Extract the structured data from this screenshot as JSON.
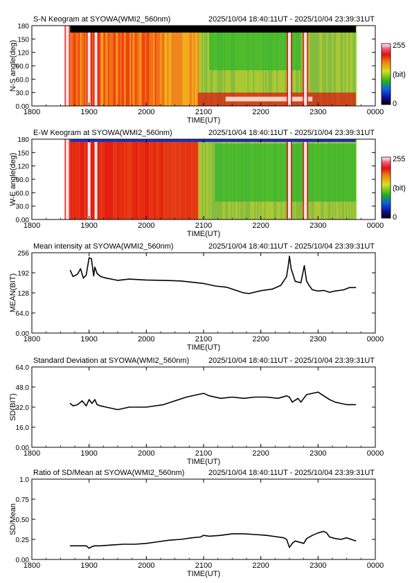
{
  "time_range": "2025/10/04 18:40:11UT - 2025/10/04 23:39:31UT",
  "colors": {
    "axis": "#000000",
    "line": "#000000",
    "keogram_low": "#2ab52a",
    "keogram_mid": "#f0d020",
    "keogram_high": "#e01010",
    "keogram_sat": "#ffffff"
  },
  "chart_data": [
    {
      "type": "heatmap",
      "title": "S-N Keogram at SYOWA(WMI2_560nm)",
      "xlabel": "TIME(UT)",
      "ylabel": "N-S angle(deg)",
      "x_ticks": [
        "1800",
        "1900",
        "2000",
        "2100",
        "2200",
        "2300",
        "0000"
      ],
      "y_ticks": [
        "0.00",
        "30.0",
        "60.0",
        "90.0",
        "120",
        "150",
        "180"
      ],
      "xlim_hours": [
        18,
        24
      ],
      "ylim": [
        0,
        180
      ],
      "data_start_hour": 18.67,
      "data_end_hour": 23.66,
      "colorbar": {
        "min_label": "0",
        "max_label": "255",
        "unit_label": "(bit)"
      },
      "bright_bands_hour": [
        18.62,
        19.0,
        19.12,
        22.5,
        22.78
      ],
      "features": [
        {
          "hour_start": 20.9,
          "hour_end": 23.66,
          "angle_low": 0,
          "angle_high": 30,
          "level": "high"
        },
        {
          "hour_start": 21.1,
          "hour_end": 22.7,
          "angle_low": 80,
          "angle_high": 170,
          "level": "low"
        }
      ]
    },
    {
      "type": "heatmap",
      "title": "E-W Keogram at SYOWA(WMI2_560nm)",
      "xlabel": "TIME(UT)",
      "ylabel": "W-E angle(deg)",
      "x_ticks": [
        "1800",
        "1900",
        "2000",
        "2100",
        "2200",
        "2300",
        "0000"
      ],
      "y_ticks": [
        "0.00",
        "30.0",
        "60.0",
        "90.0",
        "120",
        "150",
        "180"
      ],
      "xlim_hours": [
        18,
        24
      ],
      "ylim": [
        0,
        180
      ],
      "data_start_hour": 18.67,
      "data_end_hour": 23.66,
      "colorbar": {
        "min_label": "0",
        "max_label": "255",
        "unit_label": "(bit)"
      },
      "bright_bands_hour": [
        18.62,
        19.0,
        19.12,
        22.5,
        22.78
      ],
      "features": [
        {
          "hour_start": 18.67,
          "hour_end": 20.9,
          "angle_low": 0,
          "angle_high": 180,
          "level": "high"
        },
        {
          "hour_start": 21.2,
          "hour_end": 23.66,
          "angle_low": 40,
          "angle_high": 170,
          "level": "low"
        }
      ]
    },
    {
      "type": "line",
      "title": "Mean intensity at SYOWA(WMI2_560nm)",
      "xlabel": "TIME(UT)",
      "ylabel": "MEAN(BIT)",
      "x_ticks": [
        "1800",
        "1900",
        "2000",
        "2100",
        "2200",
        "2300",
        "0000"
      ],
      "y_ticks": [
        "0.00",
        "64.0",
        "128",
        "192",
        "256"
      ],
      "xlim_hours": [
        18,
        24
      ],
      "ylim": [
        0,
        256
      ],
      "series": [
        {
          "x_hours": [
            18.67,
            18.72,
            18.8,
            18.85,
            18.9,
            18.95,
            19.0,
            19.04,
            19.08,
            19.1,
            19.14,
            19.2,
            19.3,
            19.5,
            19.7,
            20.0,
            20.3,
            20.6,
            20.8,
            21.0,
            21.2,
            21.4,
            21.7,
            21.8,
            22.0,
            22.2,
            22.35,
            22.45,
            22.48,
            22.5,
            22.53,
            22.6,
            22.7,
            22.76,
            22.8,
            22.85,
            22.9,
            23.0,
            23.1,
            23.2,
            23.3,
            23.45,
            23.55,
            23.66
          ],
          "y": [
            200,
            180,
            188,
            205,
            175,
            185,
            240,
            237,
            182,
            210,
            190,
            180,
            175,
            168,
            172,
            169,
            168,
            166,
            162,
            158,
            150,
            146,
            128,
            126,
            135,
            140,
            152,
            180,
            215,
            245,
            205,
            165,
            160,
            215,
            165,
            150,
            138,
            134,
            136,
            130,
            134,
            138,
            145,
            145
          ]
        }
      ]
    },
    {
      "type": "line",
      "title": "Standard Deviation at SYOWA(WMI2_560nm)",
      "xlabel": "TIME(UT)",
      "ylabel": "SD(BIT)",
      "x_ticks": [
        "1800",
        "1900",
        "2000",
        "2100",
        "2200",
        "2300",
        "0000"
      ],
      "y_ticks": [
        "0.00",
        "16.0",
        "32.0",
        "48.0",
        "64.0"
      ],
      "xlim_hours": [
        18,
        24
      ],
      "ylim": [
        0,
        64
      ],
      "series": [
        {
          "x_hours": [
            18.67,
            18.72,
            18.8,
            18.88,
            18.95,
            19.0,
            19.05,
            19.1,
            19.14,
            19.2,
            19.3,
            19.5,
            19.7,
            20.0,
            20.3,
            20.5,
            20.7,
            20.9,
            21.0,
            21.1,
            21.3,
            21.5,
            21.7,
            21.9,
            22.1,
            22.3,
            22.45,
            22.5,
            22.55,
            22.65,
            22.7,
            22.8,
            22.9,
            23.0,
            23.1,
            23.2,
            23.3,
            23.4,
            23.5,
            23.66
          ],
          "y": [
            35,
            33,
            34,
            37,
            33,
            38,
            35,
            38,
            34,
            33,
            32,
            30,
            32,
            32,
            34,
            37,
            40,
            42,
            43,
            41,
            39,
            40,
            39,
            40,
            40,
            39,
            41,
            40,
            36,
            39,
            36,
            42,
            43,
            44,
            41,
            38,
            36,
            35,
            34,
            34
          ]
        }
      ]
    },
    {
      "type": "line",
      "title": "Ratio of SD/Mean at SYOWA(WMI2_560nm)",
      "xlabel": "TIME(UT)",
      "ylabel": "SD/Mean",
      "x_ticks": [
        "1800",
        "1900",
        "2000",
        "2100",
        "2200",
        "2300",
        "0000"
      ],
      "y_ticks": [
        "0.00",
        "0.25",
        "0.50",
        "0.75",
        "1.0"
      ],
      "xlim_hours": [
        18,
        24
      ],
      "ylim": [
        0,
        1
      ],
      "series": [
        {
          "x_hours": [
            18.67,
            18.8,
            18.95,
            19.0,
            19.05,
            19.1,
            19.2,
            19.4,
            19.6,
            19.8,
            20.0,
            20.2,
            20.4,
            20.6,
            20.8,
            20.95,
            21.0,
            21.1,
            21.3,
            21.5,
            21.7,
            21.9,
            22.1,
            22.3,
            22.4,
            22.45,
            22.5,
            22.55,
            22.6,
            22.75,
            22.8,
            22.9,
            23.0,
            23.1,
            23.15,
            23.2,
            23.3,
            23.4,
            23.5,
            23.66
          ],
          "y": [
            0.17,
            0.17,
            0.17,
            0.14,
            0.16,
            0.17,
            0.17,
            0.18,
            0.19,
            0.19,
            0.2,
            0.22,
            0.24,
            0.25,
            0.27,
            0.28,
            0.3,
            0.29,
            0.3,
            0.32,
            0.32,
            0.31,
            0.3,
            0.28,
            0.27,
            0.25,
            0.15,
            0.2,
            0.23,
            0.2,
            0.26,
            0.3,
            0.33,
            0.35,
            0.33,
            0.28,
            0.26,
            0.25,
            0.27,
            0.23
          ]
        }
      ]
    }
  ]
}
